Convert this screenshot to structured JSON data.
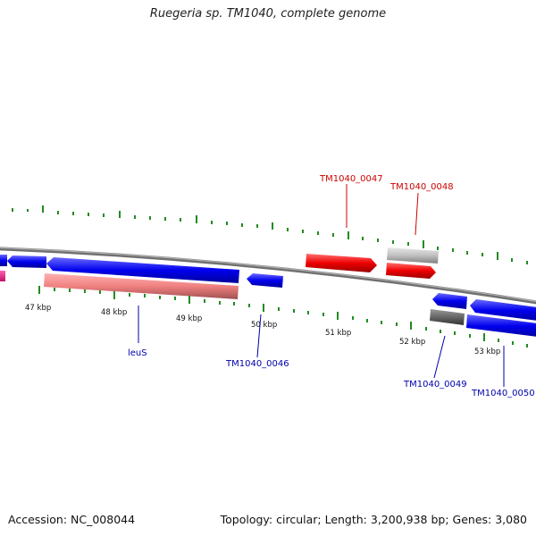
{
  "title": "Ruegeria sp. TM1040, complete genome",
  "footer": {
    "accession": "Accession: NC_008044",
    "summary": "Topology: circular; Length: 3,200,938 bp; Genes: 3,080"
  },
  "scale_labels": [
    "47 kbp",
    "48 kbp",
    "49 kbp",
    "50 kbp",
    "51 kbp",
    "52 kbp",
    "53 kbp"
  ],
  "gene_labels": {
    "leuS": "leuS",
    "tm0046": "TM1040_0046",
    "tm0047": "TM1040_0047",
    "tm0048": "TM1040_0048",
    "tm0049": "TM1040_0049",
    "tm0050": "TM1040_0050"
  },
  "colors": {
    "forward_cds": "#ee0000",
    "reverse_cds": "#0000ee",
    "rna": "#f08080",
    "pseudo": "#c0c0c0",
    "backbone": "#808080",
    "ticks": "#228b22",
    "magenta": "#ff1493"
  }
}
